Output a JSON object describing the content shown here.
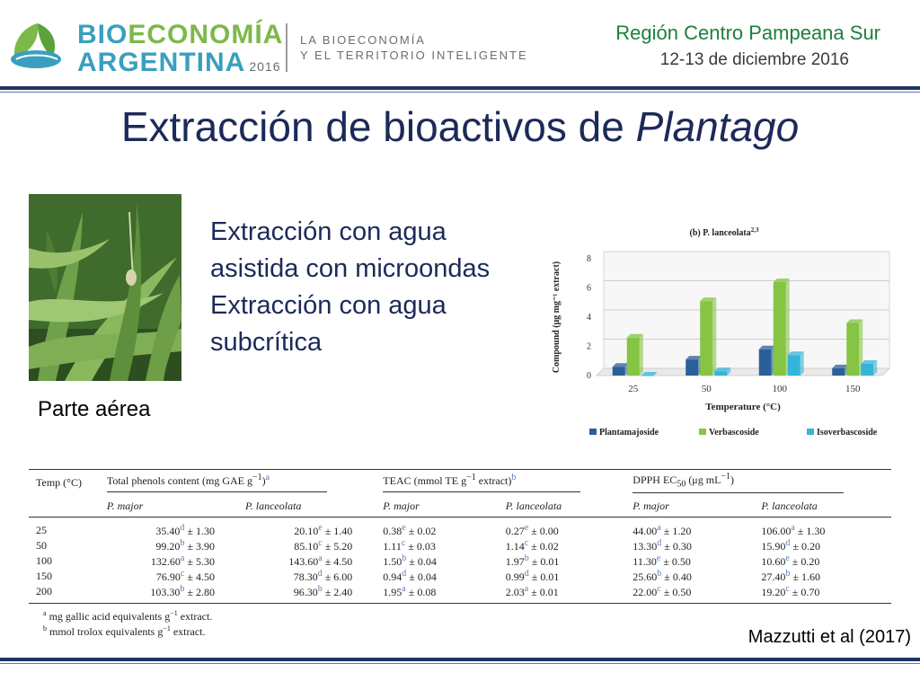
{
  "header": {
    "brand_part1": "BIO",
    "brand_part2": "ECONOMÍA",
    "brand_line2": "ARGENTINA",
    "brand_year": "2016",
    "tagline_line1": "LA BIOECONOMÍA",
    "tagline_line2": "Y EL TERRITORIO INTELIGENTE",
    "region": "Región Centro Pampeana Sur",
    "date": "12-13 de diciembre 2016"
  },
  "title": {
    "prefix": "Extracción de bioactivos de ",
    "italic": "Plantago"
  },
  "photo": {
    "caption": "Parte aérea"
  },
  "methods": [
    "Extracción con agua",
    "asistida con microondas",
    "Extracción con agua",
    "subcrítica"
  ],
  "chart_data": {
    "type": "bar",
    "title": "(b) P. lanceolata",
    "title_superscript": "2,3",
    "xlabel": "Temperature (°C)",
    "ylabel": "Compound (μg mg⁻¹ extract)",
    "categories": [
      "25",
      "50",
      "100",
      "150"
    ],
    "ylim": [
      0,
      8
    ],
    "yticks": [
      "0",
      "2",
      "4",
      "6",
      "8"
    ],
    "grid": true,
    "legend_position": "bottom",
    "series": [
      {
        "name": "Plantamajoside",
        "values": [
          0.6,
          1.1,
          1.8,
          0.5
        ],
        "color": "#2b5f9a"
      },
      {
        "name": "Verbascoside",
        "values": [
          2.6,
          5.1,
          6.4,
          3.6
        ],
        "color": "#86c443"
      },
      {
        "name": "Isoverbascoside",
        "values": [
          0.0,
          0.3,
          1.4,
          0.8
        ],
        "color": "#35b4d9"
      }
    ]
  },
  "table": {
    "temp_header": "Temp (°C)",
    "groups": [
      {
        "label": "Total phenols content (mg GAE g",
        "sup": "−1",
        "tail": ")",
        "note": "a"
      },
      {
        "label": "TEAC (mmol TE g",
        "sup": "−1",
        "tail": " extract)",
        "note": "b"
      },
      {
        "label": "DPPH EC",
        "sub": "50",
        "tail": " (μg mL",
        "sup": "−1",
        "tail2": ")"
      }
    ],
    "subheaders": [
      "P. major",
      "P. lanceolata",
      "P. major",
      "P. lanceolata",
      "P. major",
      "P. lanceolata"
    ],
    "rows": [
      {
        "temp": "25",
        "cells": [
          [
            "35.40",
            "d",
            "1.30"
          ],
          [
            "20.10",
            "e",
            "1.40"
          ],
          [
            "0.38",
            "e",
            "0.02"
          ],
          [
            "0.27",
            "e",
            "0.00"
          ],
          [
            "44.00",
            "a",
            "1.20"
          ],
          [
            "106.00",
            "a",
            "1.30"
          ]
        ]
      },
      {
        "temp": "50",
        "cells": [
          [
            "99.20",
            "b",
            "3.90"
          ],
          [
            "85.10",
            "c",
            "5.20"
          ],
          [
            "1.11",
            "c",
            "0.03"
          ],
          [
            "1.14",
            "c",
            "0.02"
          ],
          [
            "13.30",
            "d",
            "0.30"
          ],
          [
            "15.90",
            "d",
            "0.20"
          ]
        ]
      },
      {
        "temp": "100",
        "cells": [
          [
            "132.60",
            "a",
            "5.30"
          ],
          [
            "143.60",
            "a",
            "4.50"
          ],
          [
            "1.50",
            "b",
            "0.04"
          ],
          [
            "1.97",
            "b",
            "0.01"
          ],
          [
            "11.30",
            "e",
            "0.50"
          ],
          [
            "10.60",
            "e",
            "0.20"
          ]
        ]
      },
      {
        "temp": "150",
        "cells": [
          [
            "76.90",
            "c",
            "4.50"
          ],
          [
            "78.30",
            "d",
            "6.00"
          ],
          [
            "0.94",
            "d",
            "0.04"
          ],
          [
            "0.99",
            "d",
            "0.01"
          ],
          [
            "25.60",
            "b",
            "0.40"
          ],
          [
            "27.40",
            "b",
            "1.60"
          ]
        ]
      },
      {
        "temp": "200",
        "cells": [
          [
            "103.30",
            "b",
            "2.80"
          ],
          [
            "96.30",
            "b",
            "2.40"
          ],
          [
            "1.95",
            "a",
            "0.08"
          ],
          [
            "2.03",
            "a",
            "0.01"
          ],
          [
            "22.00",
            "c",
            "0.50"
          ],
          [
            "19.20",
            "c",
            "0.70"
          ]
        ]
      }
    ],
    "footnotes": [
      {
        "mark": "a",
        "text": " mg gallic acid equivalents g",
        "sup": "−1",
        "tail": " extract."
      },
      {
        "mark": "b",
        "text": " mmol trolox equivalents g",
        "sup": "−1",
        "tail": " extract."
      }
    ]
  },
  "citation": "Mazzutti et al (2017)"
}
